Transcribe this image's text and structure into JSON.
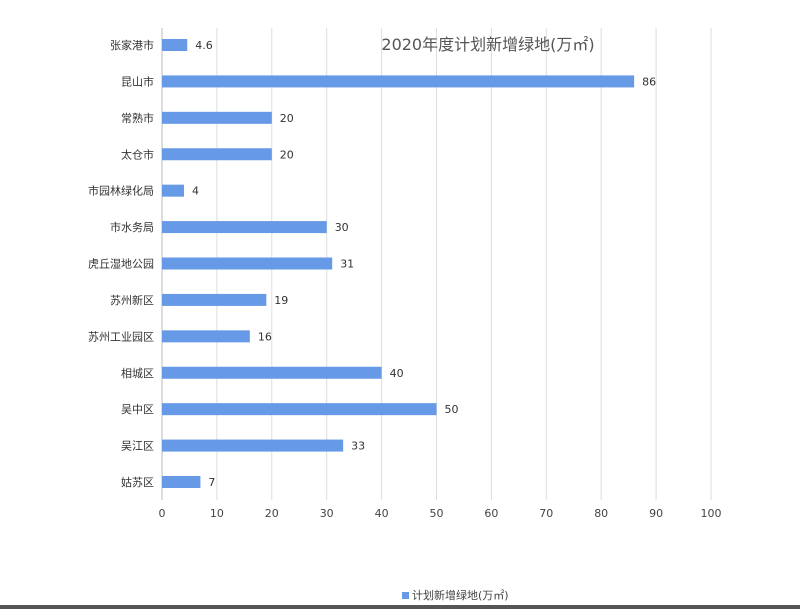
{
  "chart_data": {
    "type": "bar",
    "orientation": "horizontal",
    "title": "2020年度计划新增绿地(万㎡)",
    "categories": [
      "张家港市",
      "昆山市",
      "常熟市",
      "太仓市",
      "市园林绿化局",
      "市水务局",
      "虎丘湿地公园",
      "苏州新区",
      "苏州工业园区",
      "相城区",
      "吴中区",
      "吴江区",
      "姑苏区"
    ],
    "series": [
      {
        "name": "计划新增绿地(万㎡)",
        "values": [
          4.6,
          86,
          20,
          20,
          4,
          30,
          31,
          19,
          16,
          40,
          50,
          33,
          7
        ],
        "labels": [
          "4.6",
          "86",
          "20",
          "20",
          "4",
          "30",
          "31",
          "19",
          "16",
          "40",
          "50",
          "33",
          "7"
        ]
      }
    ],
    "xlim": [
      0,
      100
    ],
    "xticks": [
      0,
      10,
      20,
      30,
      40,
      50,
      60,
      70,
      80,
      90,
      100
    ],
    "xtick_labels": [
      "0",
      "10",
      "20",
      "30",
      "40",
      "50",
      "60",
      "70",
      "80",
      "90",
      "100"
    ],
    "grid": "vertical",
    "legend_position": "bottom",
    "colors": {
      "bar": "#6699e6",
      "grid": "#dddddd",
      "axis": "#bbbbbb"
    }
  }
}
